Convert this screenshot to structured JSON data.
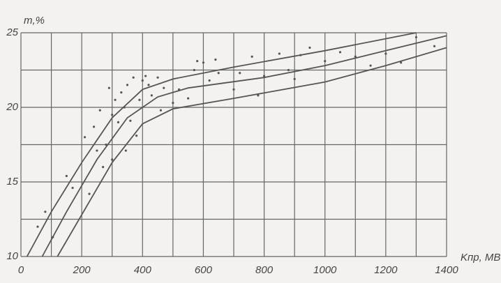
{
  "chart_data": {
    "type": "scatter",
    "y_label": "m,%",
    "x_label": "Kпр, МВ",
    "xlim": [
      0,
      1400
    ],
    "ylim": [
      10,
      25
    ],
    "xticks": [
      0,
      200,
      400,
      600,
      800,
      1000,
      1200,
      1400
    ],
    "xminor": [
      100,
      300,
      500,
      700,
      900,
      1100,
      1300
    ],
    "yticks": [
      10,
      15,
      20,
      25
    ],
    "yminor": [
      12.5,
      17.5,
      22.5
    ],
    "grid": true,
    "color": "#555555",
    "lines": [
      {
        "x": [
          20,
          100,
          200,
          300,
          400,
          500,
          700,
          1000,
          1300
        ],
        "y": [
          10,
          13,
          16.3,
          19.3,
          21.2,
          21.9,
          22.7,
          23.8,
          25
        ]
      },
      {
        "x": [
          70,
          150,
          250,
          350,
          450,
          550,
          800,
          1000,
          1200,
          1400
        ],
        "y": [
          10,
          13,
          16.5,
          19.3,
          20.7,
          21.3,
          22,
          22.8,
          23.8,
          24.8
        ]
      },
      {
        "x": [
          120,
          200,
          300,
          400,
          500,
          700,
          1000,
          1200,
          1400
        ],
        "y": [
          10,
          12.8,
          16.3,
          18.9,
          19.9,
          20.6,
          21.7,
          22.8,
          24
        ]
      }
    ],
    "points": {
      "x": [
        55,
        80,
        105,
        150,
        170,
        210,
        225,
        240,
        250,
        260,
        270,
        280,
        290,
        300,
        300,
        310,
        320,
        330,
        340,
        345,
        350,
        360,
        370,
        380,
        390,
        400,
        410,
        420,
        430,
        450,
        460,
        470,
        500,
        520,
        550,
        570,
        580,
        600,
        620,
        640,
        650,
        700,
        720,
        760,
        780,
        800,
        850,
        880,
        900,
        920,
        950,
        1000,
        1050,
        1100,
        1150,
        1200,
        1250,
        1300,
        1360
      ],
      "y": [
        12,
        13,
        11.3,
        15.4,
        14.6,
        18,
        14.2,
        18.7,
        17.1,
        19.8,
        16,
        17.5,
        21.3,
        16.5,
        19.5,
        20.5,
        19,
        21,
        20,
        17.1,
        21.5,
        19.1,
        22,
        18.1,
        20.5,
        21.8,
        22.1,
        21.5,
        20.8,
        22,
        19.8,
        21.3,
        20.3,
        21.2,
        20.6,
        22.5,
        23.1,
        23,
        21.8,
        23.2,
        22.3,
        21.2,
        22.3,
        23.4,
        20.8,
        22.1,
        23.6,
        22.5,
        21.9,
        23.5,
        24,
        23.1,
        23.7,
        23.4,
        22.8,
        23.6,
        23,
        24.7,
        24.1
      ]
    }
  }
}
